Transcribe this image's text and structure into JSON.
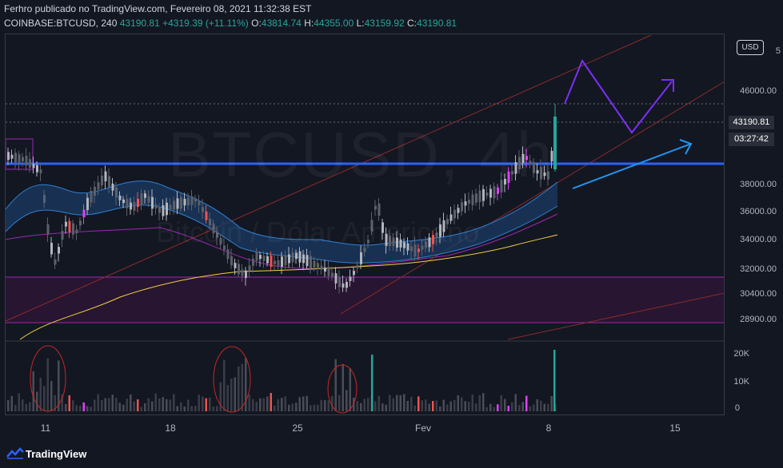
{
  "header": {
    "line1": "Ferhro publicado no TradingView.com, Fevereiro 08, 2021 11:32:38 EST",
    "symbol": "COINBASE:BTCUSD, 240",
    "last": "43190.81",
    "change": "+4319.39 (+11.11%)",
    "o_label": "O:",
    "o_val": "43814.74",
    "h_label": "H:",
    "h_val": "44355.00",
    "l_label": "L:",
    "l_val": "43159.92",
    "c_label": "C:",
    "c_val": "43190.81"
  },
  "watermark": {
    "symbol": "BTCUSD, 4h",
    "name": "Bitcoin / Dólar Americano"
  },
  "currency_button": "USD",
  "price_axis": [
    "5",
    "46000.00",
    "38000.00",
    "36000.00",
    "34000.00",
    "32000.00",
    "30400.00",
    "28900.00"
  ],
  "last_price_tag": "43190.81",
  "countdown_tag": "03:27:42",
  "volume_axis": [
    "20K",
    "10K",
    "0"
  ],
  "time_axis": [
    "11",
    "18",
    "25",
    "Fev",
    "8",
    "15"
  ],
  "brand": "TradingView",
  "colors": {
    "background": "#131722",
    "up": "#26a69a",
    "down": "#ef5350",
    "resistance": "#2962ff",
    "forecast": "#7b2ff7",
    "arrow": "#2196f3",
    "ma_yellow": "#f5d142",
    "band_blue": "#1e5a99"
  }
}
